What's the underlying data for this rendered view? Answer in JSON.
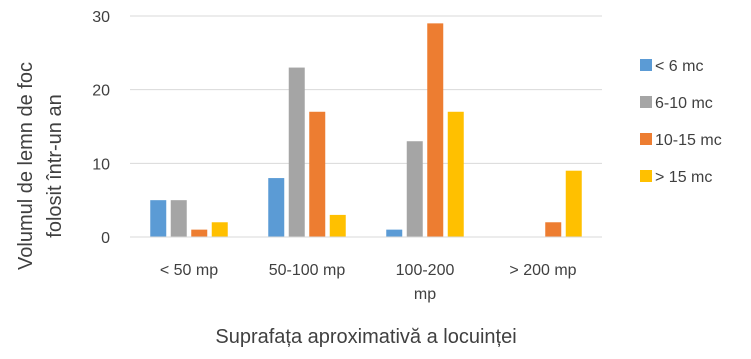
{
  "chart_data": {
    "type": "bar",
    "title": "",
    "xlabel": "Suprafața aproximativă a locuinței",
    "ylabel_lines": [
      "Volumul de lemn de foc",
      "folosit într-un an"
    ],
    "categories": [
      [
        "< 50 mp"
      ],
      [
        "50-100 mp"
      ],
      [
        "100-200",
        "mp"
      ],
      [
        "> 200 mp"
      ]
    ],
    "ylim": [
      0,
      30
    ],
    "yticks": [
      0,
      10,
      20,
      30
    ],
    "grid": true,
    "legend_position": "right",
    "series": [
      {
        "name": "< 6 mc",
        "color": "#5B9BD5",
        "values": [
          5,
          8,
          1,
          0
        ]
      },
      {
        "name": "6-10 mc",
        "color": "#A5A5A5",
        "values": [
          5,
          23,
          13,
          0
        ]
      },
      {
        "name": "10-15 mc",
        "color": "#ED7D31",
        "values": [
          1,
          17,
          29,
          2
        ]
      },
      {
        "name": "> 15 mc",
        "color": "#FFC000",
        "values": [
          2,
          3,
          17,
          9
        ]
      }
    ]
  }
}
